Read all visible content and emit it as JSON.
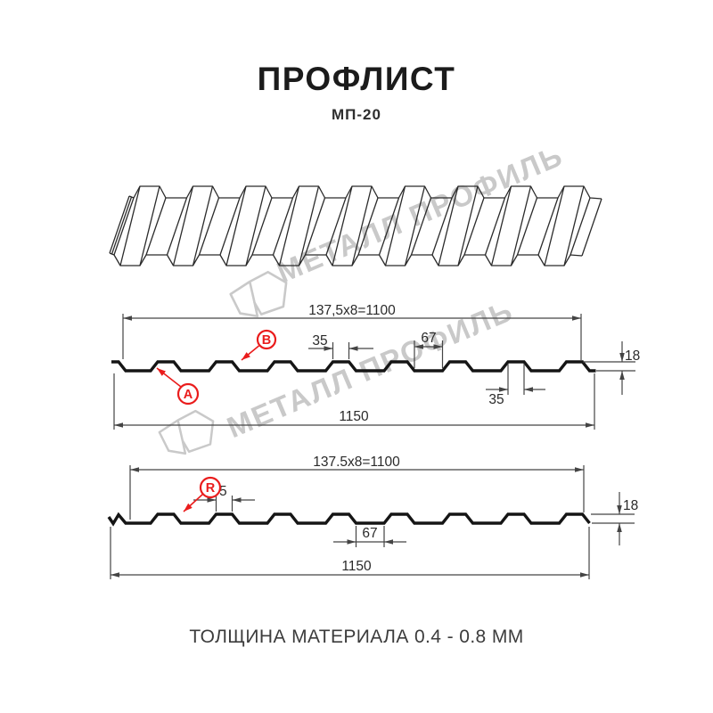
{
  "header": {
    "title": "ПРОФЛИСТ",
    "subtitle": "МП-20"
  },
  "footer": {
    "caption": "ТОЛЩИНА МАТЕРИАЛА 0.4 - 0.8 ММ"
  },
  "watermark": {
    "text": "МЕТАЛЛ ПРОФИЛЬ"
  },
  "colors": {
    "accent_red": "#ea1c1c",
    "dimension_line": "#444444",
    "profile_line": "#151515",
    "watermark_gray": "#c9c9c9"
  },
  "diagram_top": {
    "working_width": "137,5x8=1100",
    "total_width": "1150",
    "crest_width_top": "35",
    "valley_width": "67",
    "crest_width_bottom": "35",
    "height": "18",
    "label_a": "A",
    "label_b": "B"
  },
  "diagram_bottom": {
    "working_width": "137.5x8=1100",
    "total_width": "1150",
    "crest_width": "35",
    "valley_width": "67",
    "height": "18",
    "label_r": "R"
  }
}
